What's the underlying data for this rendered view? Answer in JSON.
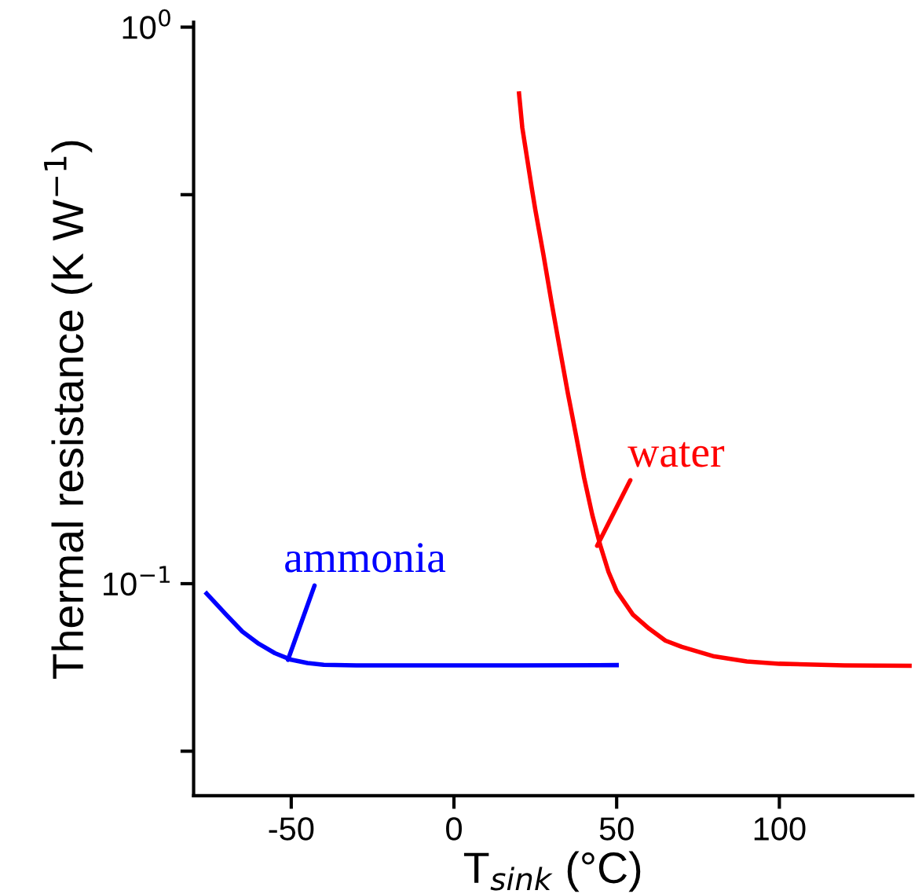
{
  "chart_data": {
    "type": "line",
    "xlabel": "T$_{sink}$ (°C)",
    "ylabel": "Thermal resistance (K W$^{−1}$)",
    "log": "y",
    "xlim": [
      -80,
      141
    ],
    "ylim": [
      0.0416,
      1.02
    ],
    "xticks": [
      -50,
      0,
      50,
      100
    ],
    "yticks": [
      {
        "value": 1,
        "label": "10$^{0}$"
      },
      {
        "value": 0.5,
        "label": null
      },
      {
        "value": 0.1,
        "label": "10$^{−1}$"
      },
      {
        "value": 0.05,
        "label": null
      }
    ],
    "grid": false,
    "marker": "none",
    "line_style": "solid",
    "series": [
      {
        "color": "#0000ff",
        "x": [
          -76,
          -70,
          -65,
          -60,
          -55,
          -50,
          -45,
          -40,
          -30,
          -20,
          0,
          20,
          50
        ],
        "values": [
          0.096,
          0.088,
          0.082,
          0.078,
          0.075,
          0.073,
          0.072,
          0.0715,
          0.0713,
          0.0713,
          0.0713,
          0.0713,
          0.0714
        ]
      },
      {
        "color": "#ff0000",
        "x": [
          20,
          21,
          22.5,
          24,
          25,
          27.5,
          30,
          32.5,
          35,
          37.5,
          40,
          42.5,
          45,
          47.5,
          50,
          55,
          60,
          65,
          70,
          80,
          90,
          100,
          120,
          140
        ],
        "values": [
          0.76,
          0.66,
          0.58,
          0.51,
          0.47,
          0.39,
          0.32,
          0.265,
          0.22,
          0.185,
          0.155,
          0.133,
          0.117,
          0.105,
          0.097,
          0.088,
          0.083,
          0.079,
          0.077,
          0.074,
          0.0725,
          0.0718,
          0.0713,
          0.0712
        ]
      }
    ],
    "annotations": [
      {
        "text": "ammonia",
        "x": -51,
        "y": 0.073
      },
      {
        "text": "water",
        "x": 44,
        "y": 0.117
      }
    ]
  }
}
